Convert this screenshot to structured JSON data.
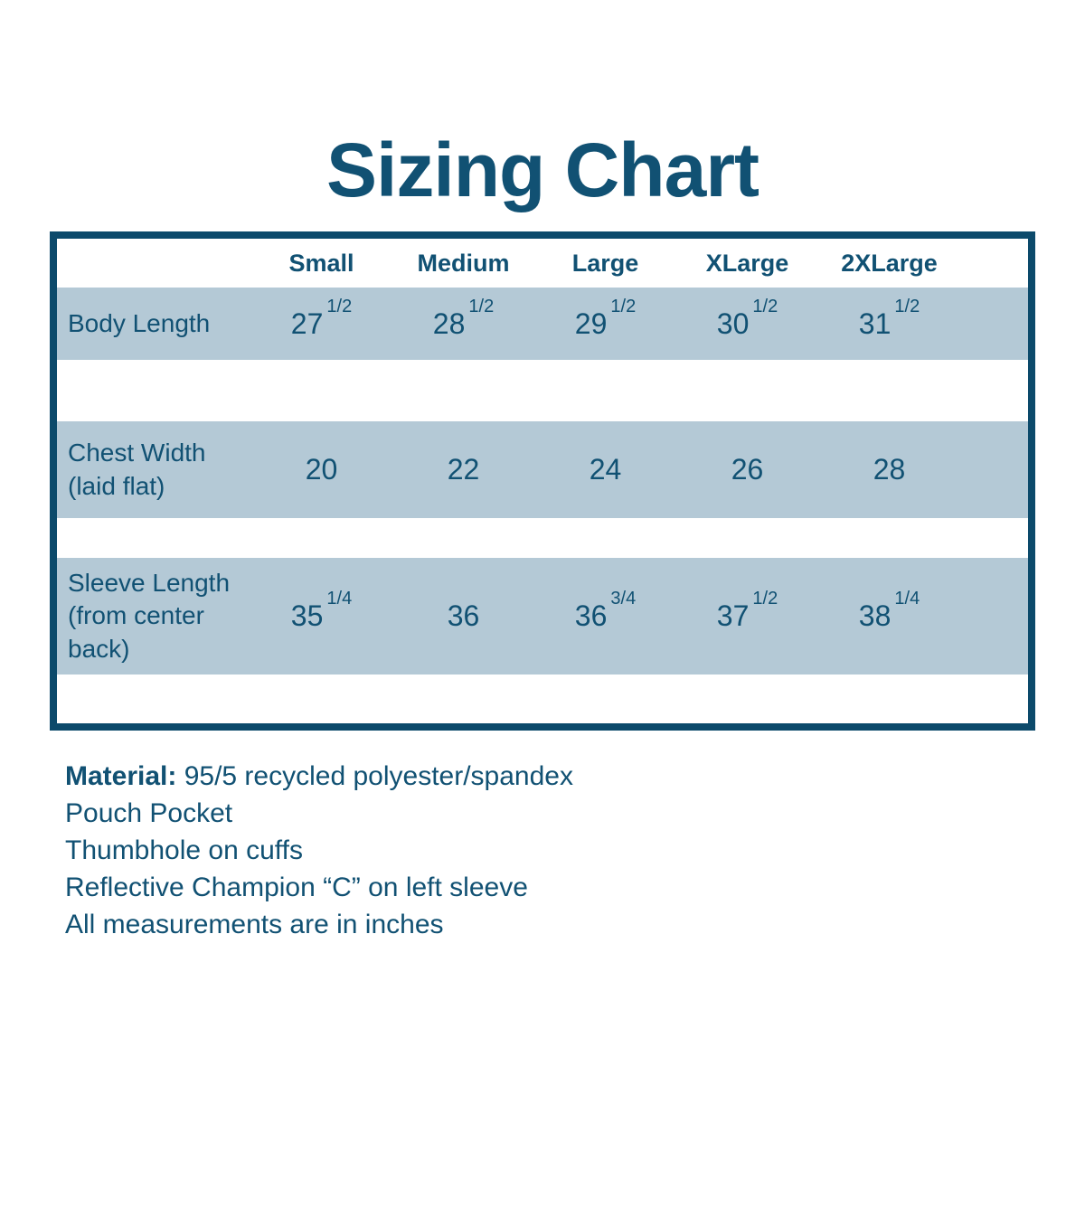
{
  "title": "Sizing Chart",
  "colors": {
    "teal": "#115173",
    "border": "#0c4a6b",
    "band": "#b4c9d6"
  },
  "table": {
    "headers": [
      "Small",
      "Medium",
      "Large",
      "XLarge",
      "2XLarge"
    ],
    "rows": [
      {
        "label_lines": [
          "Body Length"
        ],
        "values": [
          {
            "whole": "27",
            "frac": "1/2"
          },
          {
            "whole": "28",
            "frac": "1/2"
          },
          {
            "whole": "29",
            "frac": "1/2"
          },
          {
            "whole": "30",
            "frac": "1/2"
          },
          {
            "whole": "31",
            "frac": "1/2"
          }
        ]
      },
      {
        "label_lines": [
          "Chest Width",
          "(laid flat)"
        ],
        "values": [
          {
            "whole": "20"
          },
          {
            "whole": "22"
          },
          {
            "whole": "24"
          },
          {
            "whole": "26"
          },
          {
            "whole": "28"
          }
        ]
      },
      {
        "label_lines": [
          "Sleeve Length",
          "(from center",
          "back)"
        ],
        "values": [
          {
            "whole": "35",
            "frac": "1/4"
          },
          {
            "whole": "36"
          },
          {
            "whole": "36",
            "frac": "3/4"
          },
          {
            "whole": "37",
            "frac": "1/2"
          },
          {
            "whole": "38",
            "frac": "1/4"
          }
        ]
      }
    ]
  },
  "notes": {
    "material_label": "Material:",
    "material_value": " 95/5 recycled polyester/spandex",
    "lines": [
      "Pouch Pocket",
      "Thumbhole on cuffs",
      "Reflective Champion “C” on left sleeve",
      "All measurements are in inches"
    ]
  },
  "chart_data": {
    "type": "table",
    "title": "Sizing Chart",
    "columns": [
      "",
      "Small",
      "Medium",
      "Large",
      "XLarge",
      "2XLarge"
    ],
    "rows": [
      [
        "Body Length",
        "27 1/2",
        "28 1/2",
        "29 1/2",
        "30 1/2",
        "31 1/2"
      ],
      [
        "Chest Width (laid flat)",
        "20",
        "22",
        "24",
        "26",
        "28"
      ],
      [
        "Sleeve Length (from center back)",
        "35 1/4",
        "36",
        "36 3/4",
        "37 1/2",
        "38 1/4"
      ]
    ],
    "units": "inches",
    "notes": [
      "Material: 95/5 recycled polyester/spandex",
      "Pouch Pocket",
      "Thumbhole on cuffs",
      "Reflective Champion “C” on left sleeve",
      "All measurements are in inches"
    ]
  }
}
